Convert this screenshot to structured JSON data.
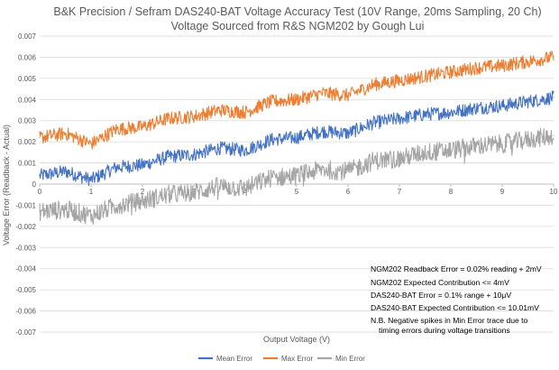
{
  "chart_data": {
    "type": "line",
    "title": "B&K Precision / Sefram DAS240-BAT Voltage Accuracy Test (10V Range, 20ms Sampling, 20 Ch)",
    "subtitle": "Voltage Sourced from R&S NGM202 by Gough Lui",
    "xlabel": "Output Voltage (V)",
    "ylabel": "Voltage Error (Readback - Actual)",
    "xlim": [
      0,
      10
    ],
    "ylim": [
      -0.007,
      0.007
    ],
    "x_ticks": [
      "0",
      "1",
      "2",
      "3",
      "4",
      "5",
      "6",
      "7",
      "8",
      "9",
      "10"
    ],
    "y_ticks": [
      "0.007",
      "0.006",
      "0.005",
      "0.004",
      "0.003",
      "0.002",
      "0.001",
      "0",
      "-0.001",
      "-0.002",
      "-0.003",
      "-0.004",
      "-0.005",
      "-0.006",
      "-0.007"
    ],
    "grid": true,
    "legend_position": "bottom",
    "series": [
      {
        "name": "Mean Error",
        "color": "#4472C4",
        "x": [
          0,
          0.5,
          1,
          1.5,
          2,
          2.5,
          3,
          3.5,
          4,
          4.5,
          5,
          5.5,
          6,
          6.5,
          7,
          7.5,
          8,
          8.5,
          9,
          9.5,
          10
        ],
        "y": [
          0.0004,
          0.0006,
          0.0002,
          0.0008,
          0.0009,
          0.0013,
          0.0014,
          0.0017,
          0.0016,
          0.0021,
          0.0022,
          0.0025,
          0.0024,
          0.0029,
          0.0031,
          0.0033,
          0.0034,
          0.0036,
          0.0037,
          0.0039,
          0.0041
        ]
      },
      {
        "name": "Max Error",
        "color": "#ED7D31",
        "x": [
          0,
          0.5,
          1,
          1.5,
          2,
          2.5,
          3,
          3.5,
          4,
          4.5,
          5,
          5.5,
          6,
          6.5,
          7,
          7.5,
          8,
          8.5,
          9,
          9.5,
          10
        ],
        "y": [
          0.0022,
          0.0024,
          0.0019,
          0.0026,
          0.0027,
          0.0031,
          0.0032,
          0.0035,
          0.0034,
          0.0039,
          0.004,
          0.0043,
          0.0042,
          0.0047,
          0.0049,
          0.0051,
          0.0053,
          0.0055,
          0.0056,
          0.0058,
          0.006
        ]
      },
      {
        "name": "Min Error",
        "color": "#A5A5A5",
        "x": [
          0,
          0.5,
          1,
          1.5,
          2,
          2.5,
          3,
          3.5,
          4,
          4.5,
          5,
          5.5,
          6,
          6.5,
          7,
          7.5,
          8,
          8.5,
          9,
          9.5,
          10
        ],
        "y": [
          -0.0013,
          -0.0012,
          -0.0015,
          -0.001,
          -0.0008,
          -0.0005,
          -0.0004,
          -0.0001,
          -0.0002,
          0.0003,
          0.0004,
          0.0007,
          0.0006,
          0.0011,
          0.0012,
          0.0015,
          0.0016,
          0.0018,
          0.0019,
          0.0021,
          0.0023
        ]
      }
    ],
    "annotations": [
      "NGM202 Readback Error = 0.02% reading + 2mV",
      "NGM202 Expected Contribution <= 4mV",
      "DAS240-BAT Error = 0.1% range + 10μV",
      "DAS240-BAT Expected Contribution <= 10.01mV",
      "N.B. Negative spikes in Min Error trace due to",
      "timing errors during voltage transitions"
    ]
  }
}
